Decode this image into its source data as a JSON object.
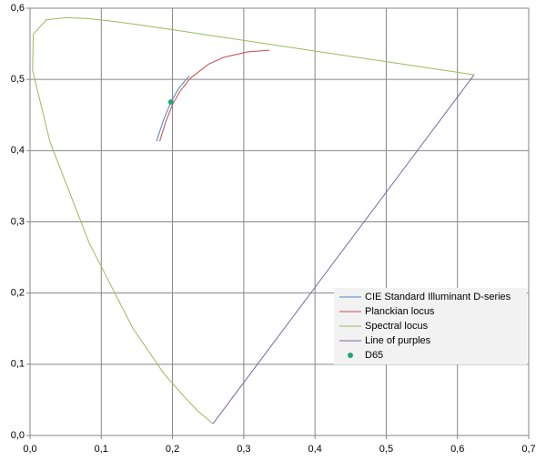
{
  "chart_data": {
    "type": "scatter",
    "xlim": [
      0,
      0.7
    ],
    "ylim": [
      0,
      0.6
    ],
    "xticks": [
      {
        "value": 0,
        "label": "0,0"
      },
      {
        "value": 0.1,
        "label": "0,1"
      },
      {
        "value": 0.2,
        "label": "0,2"
      },
      {
        "value": 0.3,
        "label": "0,3"
      },
      {
        "value": 0.4,
        "label": "0,4"
      },
      {
        "value": 0.5,
        "label": "0,5"
      },
      {
        "value": 0.6,
        "label": "0,6"
      },
      {
        "value": 0.7,
        "label": "0,7"
      }
    ],
    "yticks": [
      {
        "value": 0,
        "label": "0,0"
      },
      {
        "value": 0.1,
        "label": "0,1"
      },
      {
        "value": 0.2,
        "label": "0,2"
      },
      {
        "value": 0.3,
        "label": "0,3"
      },
      {
        "value": 0.4,
        "label": "0,4"
      },
      {
        "value": 0.5,
        "label": "0,5"
      },
      {
        "value": 0.6,
        "label": "0,6"
      }
    ],
    "grid": true,
    "legend": "lower right",
    "series": [
      {
        "name": "CIE Standard Illuminant D-series",
        "color": "#4f81bd",
        "mode": "lines",
        "x": [
          0.2235,
          0.2092,
          0.1978,
          0.187,
          0.1775
        ],
        "values": [
          0.5049,
          0.4881,
          0.4683,
          0.442,
          0.413
        ]
      },
      {
        "name": "Planckian locus",
        "color": "#c0504d",
        "mode": "lines",
        "x": [
          0.336,
          0.305,
          0.2722,
          0.2505,
          0.2251,
          0.2114,
          0.2004,
          0.1903,
          0.182
        ],
        "values": [
          0.541,
          0.5386,
          0.5311,
          0.5214,
          0.5016,
          0.4847,
          0.4655,
          0.44,
          0.413
        ]
      },
      {
        "name": "Spectral locus",
        "color": "#9bbb59",
        "mode": "lines",
        "x": [
          0.2568,
          0.2347,
          0.2161,
          0.1877,
          0.1441,
          0.0828,
          0.0282,
          0.0035,
          0.0046,
          0.0231,
          0.0501,
          0.0792,
          0.1127,
          0.1531,
          0.2026,
          0.2623,
          0.3315,
          0.4035,
          0.5202,
          0.583,
          0.6234
        ],
        "values": [
          0.0166,
          0.035,
          0.0549,
          0.0871,
          0.151,
          0.2708,
          0.4117,
          0.513,
          0.5638,
          0.5837,
          0.5868,
          0.5856,
          0.5821,
          0.5766,
          0.5694,
          0.5604,
          0.5501,
          0.5393,
          0.5219,
          0.5125,
          0.5065
        ]
      },
      {
        "name": "Line of purples",
        "color": "#8064a2",
        "mode": "lines",
        "x": [
          0.2568,
          0.6234
        ],
        "values": [
          0.0166,
          0.5065
        ]
      },
      {
        "name": "D65",
        "color": "#23a57c",
        "mode": "markers",
        "x": [
          0.1978
        ],
        "values": [
          0.4683
        ]
      }
    ]
  }
}
